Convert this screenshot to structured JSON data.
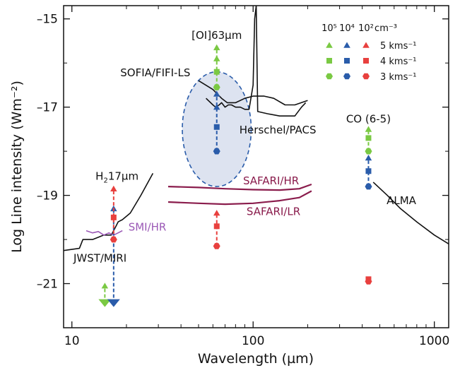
{
  "chart_data": {
    "type": "scatter",
    "title": "",
    "xlabel": "Wavelength (µm)",
    "ylabel": "Log Line intensity (Wm⁻²)",
    "xscale": "log",
    "xlim": [
      9,
      1200
    ],
    "ylim": [
      -22.0,
      -14.7
    ],
    "x_ticks": [
      10,
      100,
      1000
    ],
    "x_tick_labels": [
      "10",
      "100",
      "1000"
    ],
    "y_ticks": [
      -15,
      -17,
      -19,
      -21
    ],
    "y_tick_labels": [
      "–15",
      "–17",
      "–19",
      "–21"
    ],
    "grid": false,
    "colors": {
      "instrument": "#111111",
      "safari": "#8a1c4c",
      "smi": "#9b59b6",
      "dens_1e5": "#7ac943",
      "dens_1e4": "#2a5caa",
      "dens_1e2": "#e8403e",
      "ellipse_fill": "#dde3f0",
      "ellipse_stroke": "#2a5caa"
    },
    "instruments": [
      {
        "name": "SOFIA/FIFI-LS",
        "color": "#111111",
        "x": [
          50,
          60,
          67,
          72,
          80,
          90,
          100,
          115,
          130,
          150,
          170,
          200
        ],
        "y": [
          -16.4,
          -16.6,
          -16.8,
          -16.9,
          -16.9,
          -16.8,
          -16.75,
          -16.75,
          -16.8,
          -16.95,
          -16.95,
          -16.85
        ]
      },
      {
        "name": "Herschel/PACS",
        "color": "#111111",
        "x": [
          55,
          60,
          62,
          65,
          67,
          70,
          73,
          76,
          80,
          85,
          90,
          95,
          100,
          102,
          104,
          106,
          120,
          140,
          170,
          185,
          195
        ],
        "y": [
          -16.8,
          -16.95,
          -17.0,
          -16.95,
          -16.9,
          -17.0,
          -16.95,
          -16.95,
          -17.0,
          -17.0,
          -17.05,
          -17.05,
          -16.5,
          -15.0,
          -14.7,
          -17.1,
          -17.15,
          -17.2,
          -17.2,
          -17.0,
          -16.9
        ]
      },
      {
        "name": "SAFARI/HR",
        "color": "#8a1c4c",
        "x": [
          34,
          50,
          70,
          100,
          140,
          180,
          210
        ],
        "y": [
          -18.8,
          -18.82,
          -18.85,
          -18.87,
          -18.88,
          -18.85,
          -18.75
        ]
      },
      {
        "name": "SAFARI/LR",
        "color": "#8a1c4c",
        "x": [
          34,
          50,
          70,
          100,
          140,
          180,
          210
        ],
        "y": [
          -19.15,
          -19.18,
          -19.2,
          -19.18,
          -19.12,
          -19.05,
          -18.9
        ]
      },
      {
        "name": "JWST/MIRI",
        "color": "#111111",
        "x": [
          9,
          11,
          11.5,
          12,
          13,
          14,
          15,
          16.5,
          17,
          17.5,
          18,
          19,
          21,
          24,
          28
        ],
        "y": [
          -20.25,
          -20.2,
          -20.0,
          -20.0,
          -20.0,
          -19.95,
          -19.9,
          -19.9,
          -19.8,
          -19.7,
          -19.6,
          -19.55,
          -19.4,
          -19.0,
          -18.5
        ]
      },
      {
        "name": "SMI/HR",
        "color": "#9b59b6",
        "x": [
          12,
          13,
          14,
          15,
          16,
          17,
          18,
          19
        ],
        "y": [
          -19.8,
          -19.85,
          -19.82,
          -19.9,
          -19.85,
          -19.9,
          -19.85,
          -19.8
        ]
      },
      {
        "name": "ALMA",
        "color": "#111111",
        "x": [
          460,
          550,
          650,
          800,
          1000,
          1200
        ],
        "y": [
          -18.7,
          -19.0,
          -19.3,
          -19.6,
          -19.9,
          -20.1
        ]
      }
    ],
    "instrument_labels": [
      {
        "text": "SOFIA/FIFI-LS",
        "x": 18.5,
        "y": -16.3,
        "color": "#111111",
        "anchor": "start"
      },
      {
        "text": "Herschel/PACS",
        "x": 84,
        "y": -17.6,
        "color": "#111111",
        "anchor": "start"
      },
      {
        "text": "SAFARI/HR",
        "x": 88,
        "y": -18.75,
        "color": "#8a1c4c",
        "anchor": "start"
      },
      {
        "text": "SAFARI/LR",
        "x": 92,
        "y": -19.45,
        "color": "#8a1c4c",
        "anchor": "start"
      },
      {
        "text": "SMI/HR",
        "x": 20.5,
        "y": -19.8,
        "color": "#9b59b6",
        "anchor": "start"
      },
      {
        "text": "JWST/MIRI",
        "x": 10.2,
        "y": -20.5,
        "color": "#111111",
        "anchor": "start"
      },
      {
        "text": "ALMA",
        "x": 545,
        "y": -19.2,
        "color": "#111111",
        "anchor": "start"
      }
    ],
    "line_labels": [
      {
        "text": "[OI]63µm",
        "x": 63,
        "y": -15.45,
        "anchor": "middle"
      },
      {
        "text": "CO (6-5)",
        "x": 433,
        "y": -17.35,
        "anchor": "middle"
      },
      {
        "text": "H",
        "sub": "2",
        "rest": "17µm",
        "x": 13.5,
        "y": -18.65,
        "anchor": "start"
      }
    ],
    "oi_ellipse": {
      "cx": 63,
      "cy": -17.5,
      "rx_dex": 0.19,
      "ry": 1.3
    },
    "series": [
      {
        "line": "[OI]63µm",
        "density": "10⁵",
        "color": "#7ac943",
        "x": 63,
        "shape": "star",
        "y": [
          -16.55,
          -16.2,
          -15.9,
          -15.65
        ]
      },
      {
        "line": "[OI]63µm",
        "density": "10⁴",
        "color": "#2a5caa",
        "x": 63,
        "shape": "star",
        "y": [
          -18.0,
          -17.45,
          -17.0,
          -16.7
        ]
      },
      {
        "line": "[OI]63µm",
        "density": "10²",
        "color": "#e8403e",
        "x": 63,
        "shape": "star",
        "y": [
          -20.15,
          -19.7,
          -19.4
        ]
      },
      {
        "line": "CO (6-5)",
        "density": "10⁵",
        "color": "#7ac943",
        "x": 433,
        "shape": "star",
        "y": [
          -18.0,
          -17.7,
          -17.5
        ]
      },
      {
        "line": "CO (6-5)",
        "density": "10⁴",
        "color": "#2a5caa",
        "x": 433,
        "shape": "star",
        "y": [
          -18.8,
          -18.45,
          -18.15
        ]
      },
      {
        "line": "CO (6-5)",
        "density": "10²",
        "color": "#e8403e",
        "x": 433,
        "shape": "star",
        "y": [
          -20.95,
          -20.9
        ]
      },
      {
        "line": "H₂ 17µm",
        "density": "10⁵",
        "color": "#7ac943",
        "x": 15.2,
        "shape": "down",
        "y": [
          -21.05,
          -21.45
        ]
      },
      {
        "line": "H₂ 17µm",
        "density": "10⁴",
        "color": "#2a5caa",
        "x": 17,
        "shape": "down",
        "y": [
          -19.3,
          -21.45
        ]
      },
      {
        "line": "H₂ 17µm",
        "density": "10²",
        "color": "#e8403e",
        "x": 17,
        "shape": "star",
        "y": [
          -20.0,
          -19.5,
          -18.85
        ]
      }
    ],
    "legend": {
      "placement": "top-right",
      "header": [
        "10⁵",
        "10⁴",
        "10²",
        "cm⁻³"
      ],
      "header_colors": [
        "#7ac943",
        "#2a5caa",
        "#e8403e"
      ],
      "rows": [
        {
          "label": "5 kms⁻¹",
          "marker": "triangle"
        },
        {
          "label": "4 kms⁻¹",
          "marker": "square"
        },
        {
          "label": "3 kms⁻¹",
          "marker": "hexagon"
        }
      ]
    }
  }
}
